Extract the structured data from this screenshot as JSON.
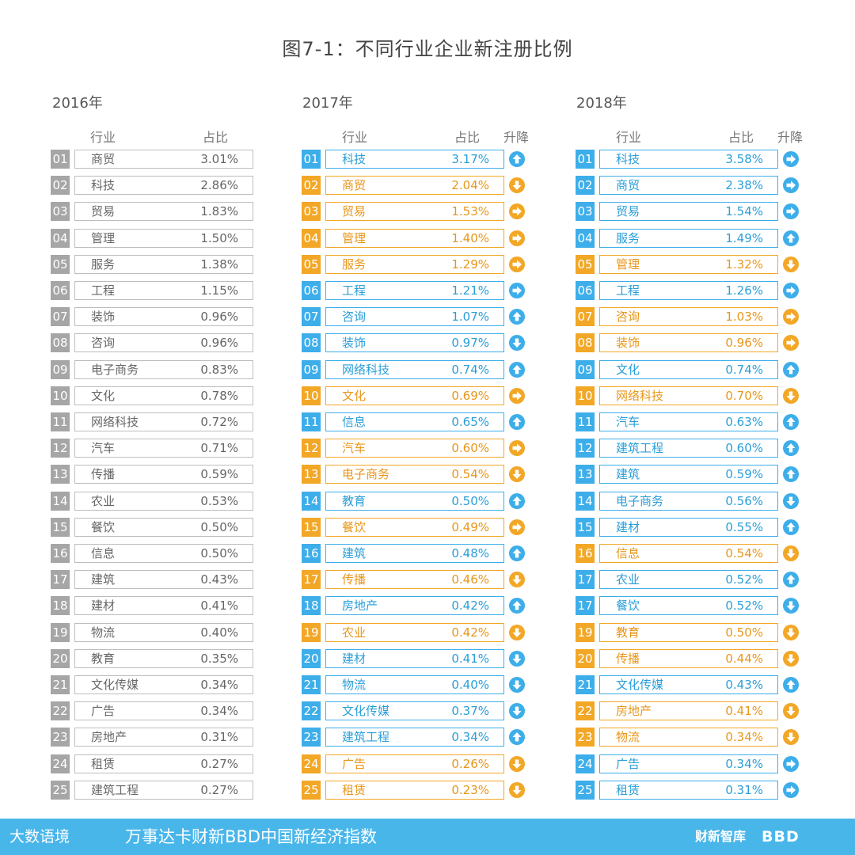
{
  "title": "图7-1：不同行业企业新注册比例",
  "headers": {
    "industry": "行业",
    "share": "占比",
    "change": "升降"
  },
  "colors": {
    "gray": "#a6a6a6",
    "blue": "#3daee9",
    "orange": "#f2a726",
    "footer": "#49b6ea"
  },
  "chart_data": {
    "type": "table",
    "title": "图7-1：不同行业企业新注册比例",
    "tables": [
      {
        "year": "2016年",
        "rows": [
          {
            "rank": "01",
            "industry": "商贸",
            "share": "3.01%"
          },
          {
            "rank": "02",
            "industry": "科技",
            "share": "2.86%"
          },
          {
            "rank": "03",
            "industry": "贸易",
            "share": "1.83%"
          },
          {
            "rank": "04",
            "industry": "管理",
            "share": "1.50%"
          },
          {
            "rank": "05",
            "industry": "服务",
            "share": "1.38%"
          },
          {
            "rank": "06",
            "industry": "工程",
            "share": "1.15%"
          },
          {
            "rank": "07",
            "industry": "装饰",
            "share": "0.96%"
          },
          {
            "rank": "08",
            "industry": "咨询",
            "share": "0.96%"
          },
          {
            "rank": "09",
            "industry": "电子商务",
            "share": "0.83%"
          },
          {
            "rank": "10",
            "industry": "文化",
            "share": "0.78%"
          },
          {
            "rank": "11",
            "industry": "网络科技",
            "share": "0.72%"
          },
          {
            "rank": "12",
            "industry": "汽车",
            "share": "0.71%"
          },
          {
            "rank": "13",
            "industry": "传播",
            "share": "0.59%"
          },
          {
            "rank": "14",
            "industry": "农业",
            "share": "0.53%"
          },
          {
            "rank": "15",
            "industry": "餐饮",
            "share": "0.50%"
          },
          {
            "rank": "16",
            "industry": "信息",
            "share": "0.50%"
          },
          {
            "rank": "17",
            "industry": "建筑",
            "share": "0.43%"
          },
          {
            "rank": "18",
            "industry": "建材",
            "share": "0.41%"
          },
          {
            "rank": "19",
            "industry": "物流",
            "share": "0.40%"
          },
          {
            "rank": "20",
            "industry": "教育",
            "share": "0.35%"
          },
          {
            "rank": "21",
            "industry": "文化传媒",
            "share": "0.34%"
          },
          {
            "rank": "22",
            "industry": "广告",
            "share": "0.34%"
          },
          {
            "rank": "23",
            "industry": "房地产",
            "share": "0.31%"
          },
          {
            "rank": "24",
            "industry": "租赁",
            "share": "0.27%"
          },
          {
            "rank": "25",
            "industry": "建筑工程",
            "share": "0.27%"
          }
        ]
      },
      {
        "year": "2017年",
        "rows": [
          {
            "rank": "01",
            "industry": "科技",
            "share": "3.17%",
            "trend": "up",
            "color": "blue"
          },
          {
            "rank": "02",
            "industry": "商贸",
            "share": "2.04%",
            "trend": "down",
            "color": "orange"
          },
          {
            "rank": "03",
            "industry": "贸易",
            "share": "1.53%",
            "trend": "flat",
            "color": "orange"
          },
          {
            "rank": "04",
            "industry": "管理",
            "share": "1.40%",
            "trend": "flat",
            "color": "orange"
          },
          {
            "rank": "05",
            "industry": "服务",
            "share": "1.29%",
            "trend": "flat",
            "color": "orange"
          },
          {
            "rank": "06",
            "industry": "工程",
            "share": "1.21%",
            "trend": "flat",
            "color": "blue"
          },
          {
            "rank": "07",
            "industry": "咨询",
            "share": "1.07%",
            "trend": "up",
            "color": "blue"
          },
          {
            "rank": "08",
            "industry": "装饰",
            "share": "0.97%",
            "trend": "down",
            "color": "blue"
          },
          {
            "rank": "09",
            "industry": "网络科技",
            "share": "0.74%",
            "trend": "up",
            "color": "blue"
          },
          {
            "rank": "10",
            "industry": "文化",
            "share": "0.69%",
            "trend": "flat",
            "color": "orange"
          },
          {
            "rank": "11",
            "industry": "信息",
            "share": "0.65%",
            "trend": "up",
            "color": "blue"
          },
          {
            "rank": "12",
            "industry": "汽车",
            "share": "0.60%",
            "trend": "flat",
            "color": "orange"
          },
          {
            "rank": "13",
            "industry": "电子商务",
            "share": "0.54%",
            "trend": "down",
            "color": "orange"
          },
          {
            "rank": "14",
            "industry": "教育",
            "share": "0.50%",
            "trend": "up",
            "color": "blue"
          },
          {
            "rank": "15",
            "industry": "餐饮",
            "share": "0.49%",
            "trend": "flat",
            "color": "orange"
          },
          {
            "rank": "16",
            "industry": "建筑",
            "share": "0.48%",
            "trend": "up",
            "color": "blue"
          },
          {
            "rank": "17",
            "industry": "传播",
            "share": "0.46%",
            "trend": "down",
            "color": "orange"
          },
          {
            "rank": "18",
            "industry": "房地产",
            "share": "0.42%",
            "trend": "up",
            "color": "blue"
          },
          {
            "rank": "19",
            "industry": "农业",
            "share": "0.42%",
            "trend": "down",
            "color": "orange"
          },
          {
            "rank": "20",
            "industry": "建材",
            "share": "0.41%",
            "trend": "down",
            "color": "blue"
          },
          {
            "rank": "21",
            "industry": "物流",
            "share": "0.40%",
            "trend": "down",
            "color": "blue"
          },
          {
            "rank": "22",
            "industry": "文化传媒",
            "share": "0.37%",
            "trend": "down",
            "color": "blue"
          },
          {
            "rank": "23",
            "industry": "建筑工程",
            "share": "0.34%",
            "trend": "up",
            "color": "blue"
          },
          {
            "rank": "24",
            "industry": "广告",
            "share": "0.26%",
            "trend": "down",
            "color": "orange"
          },
          {
            "rank": "25",
            "industry": "租赁",
            "share": "0.23%",
            "trend": "down",
            "color": "orange"
          }
        ]
      },
      {
        "year": "2018年",
        "rows": [
          {
            "rank": "01",
            "industry": "科技",
            "share": "3.58%",
            "trend": "flat",
            "color": "blue"
          },
          {
            "rank": "02",
            "industry": "商贸",
            "share": "2.38%",
            "trend": "flat",
            "color": "blue"
          },
          {
            "rank": "03",
            "industry": "贸易",
            "share": "1.54%",
            "trend": "flat",
            "color": "blue"
          },
          {
            "rank": "04",
            "industry": "服务",
            "share": "1.49%",
            "trend": "up",
            "color": "blue"
          },
          {
            "rank": "05",
            "industry": "管理",
            "share": "1.32%",
            "trend": "down",
            "color": "orange"
          },
          {
            "rank": "06",
            "industry": "工程",
            "share": "1.26%",
            "trend": "flat",
            "color": "blue"
          },
          {
            "rank": "07",
            "industry": "咨询",
            "share": "1.03%",
            "trend": "flat",
            "color": "orange"
          },
          {
            "rank": "08",
            "industry": "装饰",
            "share": "0.96%",
            "trend": "flat",
            "color": "orange"
          },
          {
            "rank": "09",
            "industry": "文化",
            "share": "0.74%",
            "trend": "up",
            "color": "blue"
          },
          {
            "rank": "10",
            "industry": "网络科技",
            "share": "0.70%",
            "trend": "down",
            "color": "orange"
          },
          {
            "rank": "11",
            "industry": "汽车",
            "share": "0.63%",
            "trend": "up",
            "color": "blue"
          },
          {
            "rank": "12",
            "industry": "建筑工程",
            "share": "0.60%",
            "trend": "up",
            "color": "blue"
          },
          {
            "rank": "13",
            "industry": "建筑",
            "share": "0.59%",
            "trend": "up",
            "color": "blue"
          },
          {
            "rank": "14",
            "industry": "电子商务",
            "share": "0.56%",
            "trend": "down",
            "color": "blue"
          },
          {
            "rank": "15",
            "industry": "建材",
            "share": "0.55%",
            "trend": "up",
            "color": "blue"
          },
          {
            "rank": "16",
            "industry": "信息",
            "share": "0.54%",
            "trend": "down",
            "color": "orange"
          },
          {
            "rank": "17",
            "industry": "农业",
            "share": "0.52%",
            "trend": "up",
            "color": "blue"
          },
          {
            "rank": "17",
            "industry": "餐饮",
            "share": "0.52%",
            "trend": "down",
            "color": "blue"
          },
          {
            "rank": "19",
            "industry": "教育",
            "share": "0.50%",
            "trend": "down",
            "color": "orange"
          },
          {
            "rank": "20",
            "industry": "传播",
            "share": "0.44%",
            "trend": "down",
            "color": "orange"
          },
          {
            "rank": "21",
            "industry": "文化传媒",
            "share": "0.43%",
            "trend": "up",
            "color": "blue"
          },
          {
            "rank": "22",
            "industry": "房地产",
            "share": "0.41%",
            "trend": "down",
            "color": "orange"
          },
          {
            "rank": "23",
            "industry": "物流",
            "share": "0.34%",
            "trend": "down",
            "color": "orange"
          },
          {
            "rank": "24",
            "industry": "广告",
            "share": "0.34%",
            "trend": "flat",
            "color": "blue"
          },
          {
            "rank": "25",
            "industry": "租赁",
            "share": "0.31%",
            "trend": "flat",
            "color": "blue"
          }
        ]
      }
    ]
  },
  "footer": {
    "logo": "大数语境",
    "text": "万事达卡财新BBD中国新经济指数",
    "brand1": "财新智库",
    "brand2": "BBD"
  }
}
